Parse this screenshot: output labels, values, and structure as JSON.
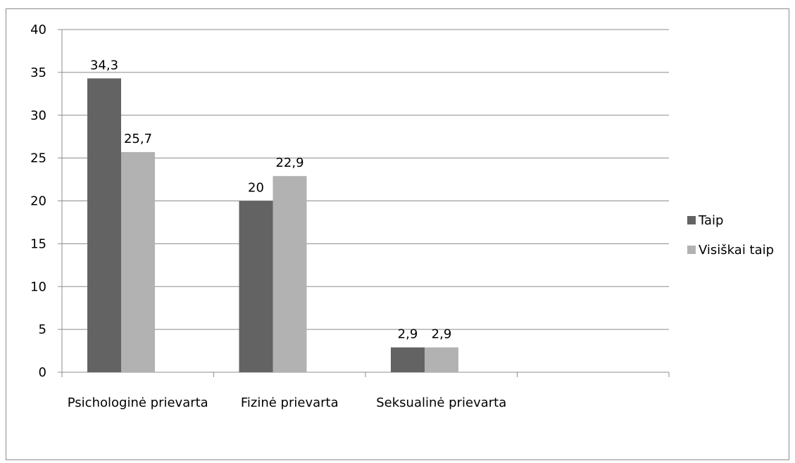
{
  "chart_data": {
    "type": "bar",
    "categories": [
      "Psichologinė prievarta",
      "Fizinė prievarta",
      "Seksualinė prievarta",
      ""
    ],
    "series": [
      {
        "name": "Taip",
        "values": [
          34.3,
          20,
          2.9,
          null
        ],
        "labels": [
          "34,3",
          "20",
          "2,9",
          ""
        ],
        "color": "#636363"
      },
      {
        "name": "Visiškai taip",
        "values": [
          25.7,
          22.9,
          2.9,
          null
        ],
        "labels": [
          "25,7",
          "22,9",
          "2,9",
          ""
        ],
        "color": "#b2b2b2"
      }
    ],
    "yticks": [
      0,
      5,
      10,
      15,
      20,
      25,
      30,
      35,
      40
    ],
    "ylim": [
      0,
      40
    ],
    "grid": true,
    "legend": "right",
    "gridline_color": "#8c8c8c",
    "title": "",
    "xlabel": "",
    "ylabel": ""
  }
}
